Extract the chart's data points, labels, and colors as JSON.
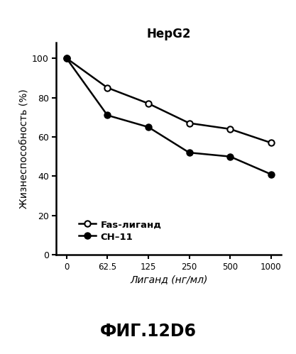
{
  "title": "HepG2",
  "xlabel": "Лиганд (нг/мл)",
  "ylabel": "Жизнеспособность (%)",
  "x_positions": [
    0,
    1,
    2,
    3,
    4,
    5
  ],
  "xtick_labels": [
    "0",
    "62.5",
    "125",
    "250",
    "500",
    "1000"
  ],
  "fas_ligand_y": [
    100,
    85,
    77,
    67,
    64,
    57
  ],
  "ch11_y": [
    100,
    71,
    65,
    52,
    50,
    41
  ],
  "fas_label": "Fas-лиганд",
  "ch11_label": "СН–11",
  "ylim": [
    0,
    108
  ],
  "yticks": [
    0,
    20,
    40,
    60,
    80,
    100
  ],
  "fig_caption": "ФИГ.12D6",
  "line_color": "black",
  "bg_color": "white"
}
